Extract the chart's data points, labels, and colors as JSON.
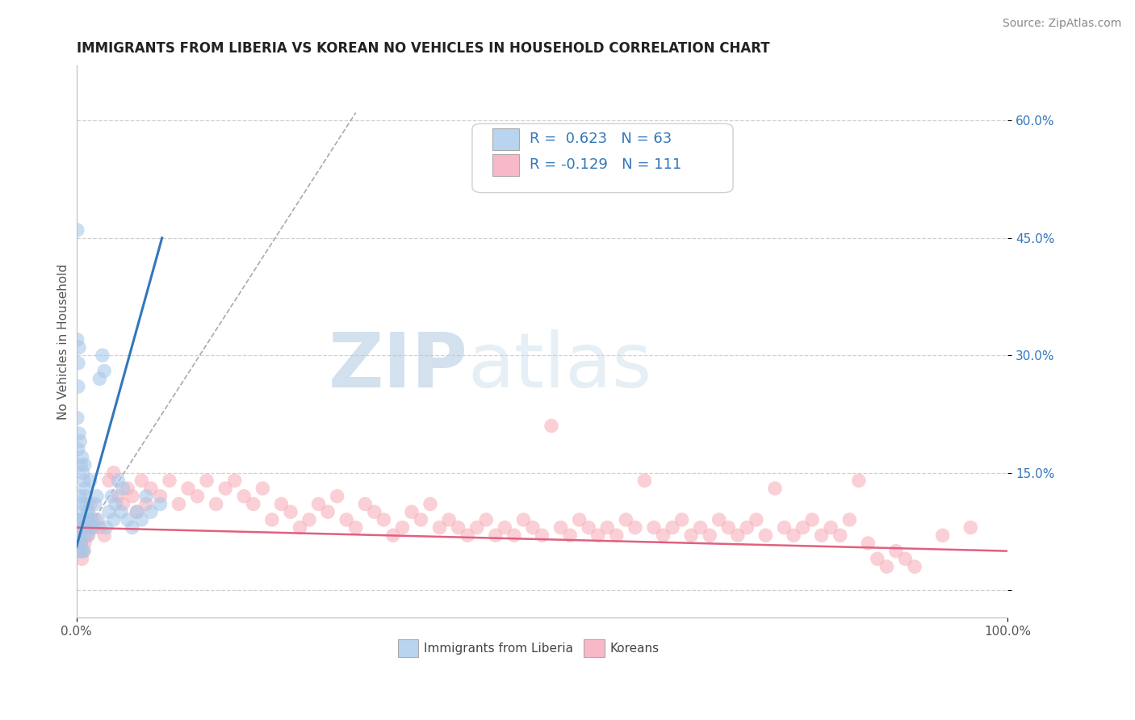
{
  "title": "IMMIGRANTS FROM LIBERIA VS KOREAN NO VEHICLES IN HOUSEHOLD CORRELATION CHART",
  "source_text": "Source: ZipAtlas.com",
  "ylabel": "No Vehicles in Household",
  "xlim": [
    0,
    1.0
  ],
  "ylim": [
    -0.035,
    0.67
  ],
  "ytick_values": [
    0.0,
    0.15,
    0.3,
    0.45,
    0.6
  ],
  "ytick_labels": [
    "",
    "15.0%",
    "30.0%",
    "45.0%",
    "60.0%"
  ],
  "xtick_values": [
    0.0,
    1.0
  ],
  "xtick_labels": [
    "0.0%",
    "100.0%"
  ],
  "legend_blue_label": "Immigrants from Liberia",
  "legend_pink_label": "Koreans",
  "R_blue": "R =  0.623",
  "N_blue": "N = 63",
  "R_pink": "R = -0.129",
  "N_pink": "N = 111",
  "watermark_zip": "ZIP",
  "watermark_atlas": "atlas",
  "blue_fill": "#aac8e8",
  "blue_line_color": "#3377bb",
  "pink_fill": "#f8b0bc",
  "pink_line_color": "#e06080",
  "legend_blue_box": "#b8d4ee",
  "legend_pink_box": "#f8b8c8",
  "grid_color": "#c8c8c8",
  "bg_color": "#ffffff",
  "title_fontsize": 12,
  "ylabel_fontsize": 11,
  "tick_fontsize": 11,
  "legend_fontsize": 13,
  "source_fontsize": 10,
  "blue_scatter_x": [
    0.001,
    0.001,
    0.001,
    0.001,
    0.001,
    0.001,
    0.002,
    0.002,
    0.002,
    0.002,
    0.002,
    0.002,
    0.003,
    0.003,
    0.003,
    0.003,
    0.004,
    0.004,
    0.004,
    0.005,
    0.005,
    0.005,
    0.006,
    0.006,
    0.006,
    0.007,
    0.007,
    0.008,
    0.008,
    0.009,
    0.009,
    0.01,
    0.01,
    0.011,
    0.012,
    0.012,
    0.013,
    0.013,
    0.015,
    0.016,
    0.018,
    0.02,
    0.022,
    0.023,
    0.025,
    0.028,
    0.03,
    0.032,
    0.035,
    0.038,
    0.04,
    0.042,
    0.045,
    0.048,
    0.05,
    0.055,
    0.06,
    0.065,
    0.07,
    0.075,
    0.08,
    0.09,
    0.015
  ],
  "blue_scatter_y": [
    0.08,
    0.22,
    0.32,
    0.46,
    0.07,
    0.09,
    0.1,
    0.18,
    0.26,
    0.29,
    0.09,
    0.06,
    0.07,
    0.2,
    0.31,
    0.05,
    0.12,
    0.19,
    0.07,
    0.06,
    0.16,
    0.08,
    0.09,
    0.17,
    0.05,
    0.11,
    0.15,
    0.05,
    0.14,
    0.13,
    0.16,
    0.08,
    0.12,
    0.11,
    0.07,
    0.1,
    0.1,
    0.09,
    0.14,
    0.09,
    0.08,
    0.11,
    0.12,
    0.09,
    0.27,
    0.3,
    0.28,
    0.08,
    0.1,
    0.12,
    0.09,
    0.11,
    0.14,
    0.1,
    0.13,
    0.09,
    0.08,
    0.1,
    0.09,
    0.12,
    0.1,
    0.11,
    0.08
  ],
  "pink_scatter_x": [
    0.001,
    0.002,
    0.003,
    0.004,
    0.005,
    0.006,
    0.007,
    0.008,
    0.009,
    0.01,
    0.012,
    0.013,
    0.015,
    0.018,
    0.02,
    0.025,
    0.03,
    0.035,
    0.04,
    0.045,
    0.05,
    0.055,
    0.06,
    0.065,
    0.07,
    0.075,
    0.08,
    0.09,
    0.1,
    0.11,
    0.12,
    0.13,
    0.14,
    0.15,
    0.16,
    0.17,
    0.18,
    0.19,
    0.2,
    0.21,
    0.22,
    0.23,
    0.24,
    0.25,
    0.26,
    0.27,
    0.28,
    0.29,
    0.3,
    0.31,
    0.32,
    0.33,
    0.34,
    0.35,
    0.36,
    0.37,
    0.38,
    0.39,
    0.4,
    0.41,
    0.42,
    0.43,
    0.44,
    0.45,
    0.46,
    0.47,
    0.48,
    0.49,
    0.5,
    0.51,
    0.52,
    0.53,
    0.54,
    0.55,
    0.56,
    0.57,
    0.58,
    0.59,
    0.6,
    0.61,
    0.62,
    0.63,
    0.64,
    0.65,
    0.66,
    0.67,
    0.68,
    0.69,
    0.7,
    0.71,
    0.72,
    0.73,
    0.74,
    0.75,
    0.76,
    0.77,
    0.78,
    0.79,
    0.8,
    0.81,
    0.82,
    0.83,
    0.84,
    0.85,
    0.86,
    0.87,
    0.88,
    0.89,
    0.9,
    0.93,
    0.96
  ],
  "pink_scatter_y": [
    0.05,
    0.06,
    0.07,
    0.05,
    0.06,
    0.04,
    0.08,
    0.05,
    0.06,
    0.07,
    0.09,
    0.07,
    0.11,
    0.08,
    0.09,
    0.08,
    0.07,
    0.14,
    0.15,
    0.12,
    0.11,
    0.13,
    0.12,
    0.1,
    0.14,
    0.11,
    0.13,
    0.12,
    0.14,
    0.11,
    0.13,
    0.12,
    0.14,
    0.11,
    0.13,
    0.14,
    0.12,
    0.11,
    0.13,
    0.09,
    0.11,
    0.1,
    0.08,
    0.09,
    0.11,
    0.1,
    0.12,
    0.09,
    0.08,
    0.11,
    0.1,
    0.09,
    0.07,
    0.08,
    0.1,
    0.09,
    0.11,
    0.08,
    0.09,
    0.08,
    0.07,
    0.08,
    0.09,
    0.07,
    0.08,
    0.07,
    0.09,
    0.08,
    0.07,
    0.21,
    0.08,
    0.07,
    0.09,
    0.08,
    0.07,
    0.08,
    0.07,
    0.09,
    0.08,
    0.14,
    0.08,
    0.07,
    0.08,
    0.09,
    0.07,
    0.08,
    0.07,
    0.09,
    0.08,
    0.07,
    0.08,
    0.09,
    0.07,
    0.13,
    0.08,
    0.07,
    0.08,
    0.09,
    0.07,
    0.08,
    0.07,
    0.09,
    0.14,
    0.06,
    0.04,
    0.03,
    0.05,
    0.04,
    0.03,
    0.07,
    0.08
  ],
  "blue_line_x": [
    0.0,
    0.092
  ],
  "blue_line_y": [
    0.055,
    0.45
  ],
  "pink_line_x": [
    0.0,
    1.0
  ],
  "pink_line_y": [
    0.08,
    0.05
  ],
  "dash_line_x": [
    0.0,
    0.3
  ],
  "dash_line_y": [
    0.055,
    0.61
  ]
}
